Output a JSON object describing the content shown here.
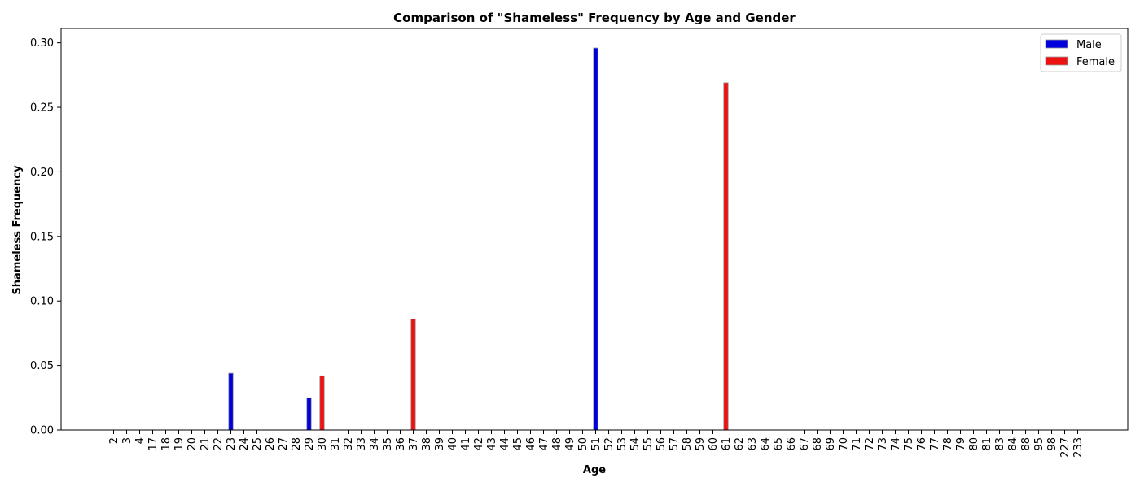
{
  "chart_data": {
    "type": "bar",
    "title": "Comparison of \"Shameless\" Frequency by Age and Gender",
    "xlabel": "Age",
    "ylabel": "Shameless Frequency",
    "ylim": [
      0,
      0.31
    ],
    "yticks": [
      "0.00",
      "0.05",
      "0.10",
      "0.15",
      "0.20",
      "0.25",
      "0.30"
    ],
    "grid": false,
    "legend_position": "top-right",
    "categories": [
      "2",
      "3",
      "4",
      "17",
      "18",
      "19",
      "20",
      "21",
      "22",
      "23",
      "24",
      "25",
      "26",
      "27",
      "28",
      "29",
      "30",
      "31",
      "32",
      "33",
      "34",
      "35",
      "36",
      "37",
      "38",
      "39",
      "40",
      "41",
      "42",
      "43",
      "44",
      "45",
      "46",
      "47",
      "48",
      "49",
      "50",
      "51",
      "52",
      "53",
      "54",
      "55",
      "56",
      "57",
      "58",
      "59",
      "60",
      "61",
      "62",
      "63",
      "64",
      "65",
      "66",
      "67",
      "68",
      "69",
      "70",
      "71",
      "72",
      "73",
      "74",
      "75",
      "76",
      "77",
      "78",
      "79",
      "80",
      "81",
      "83",
      "84",
      "88",
      "95",
      "98",
      "227",
      "233"
    ],
    "series": [
      {
        "name": "Male",
        "color": "#0000dd",
        "points": [
          {
            "x": "23",
            "y": 0.044
          },
          {
            "x": "29",
            "y": 0.025
          },
          {
            "x": "51",
            "y": 0.296
          }
        ]
      },
      {
        "name": "Female",
        "color": "#ee1111",
        "points": [
          {
            "x": "30",
            "y": 0.042
          },
          {
            "x": "37",
            "y": 0.086
          },
          {
            "x": "61",
            "y": 0.269
          }
        ]
      }
    ]
  }
}
